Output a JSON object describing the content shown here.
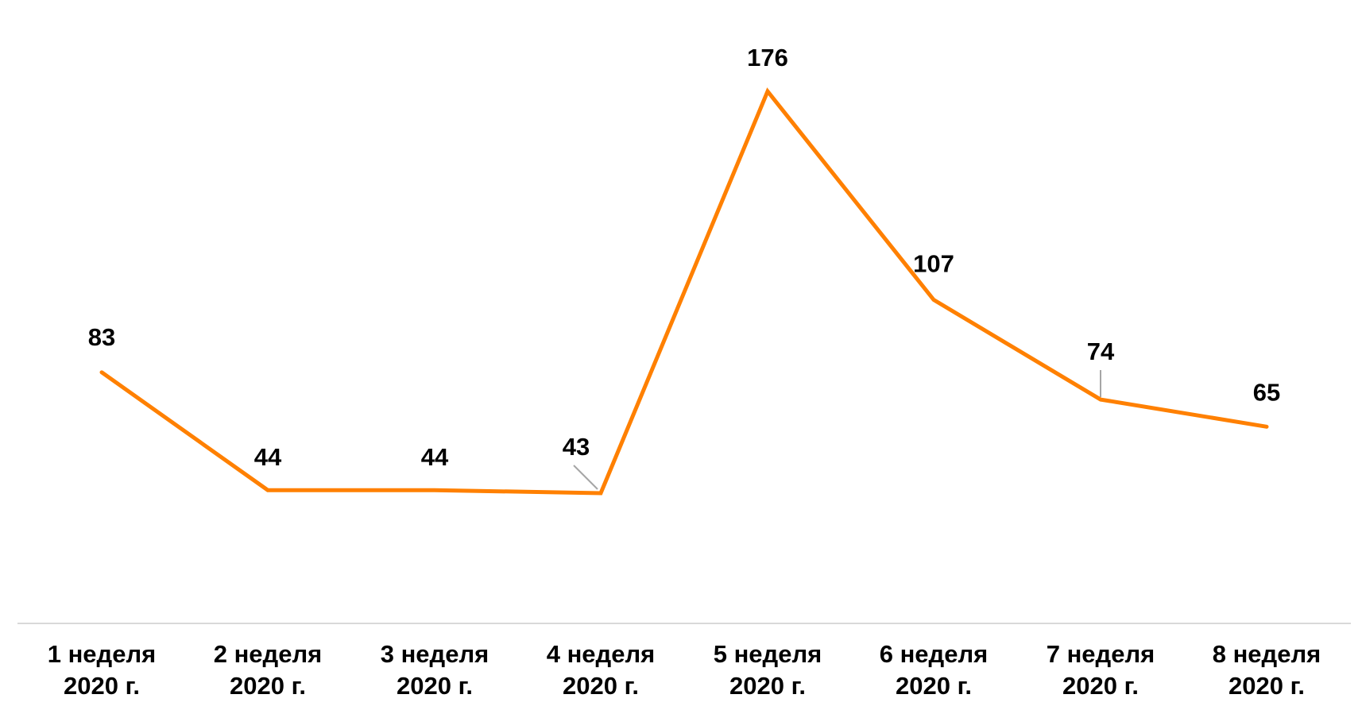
{
  "chart_data": {
    "type": "line",
    "title": "",
    "xlabel": "",
    "ylabel": "",
    "categories": [
      [
        "1 неделя",
        "2020 г."
      ],
      [
        "2 неделя",
        "2020 г."
      ],
      [
        "3 неделя",
        "2020 г."
      ],
      [
        "4 неделя",
        "2020 г."
      ],
      [
        "5 неделя",
        "2020 г."
      ],
      [
        "6 неделя",
        "2020 г."
      ],
      [
        "7 неделя",
        "2020 г."
      ],
      [
        "8 неделя",
        "2020 г."
      ]
    ],
    "series": [
      {
        "name": "",
        "color": "#FF8000",
        "values": [
          83,
          44,
          44,
          43,
          176,
          107,
          74,
          65
        ]
      }
    ],
    "grid": false,
    "legend": "none",
    "axis_color": "#D9D9D9"
  }
}
